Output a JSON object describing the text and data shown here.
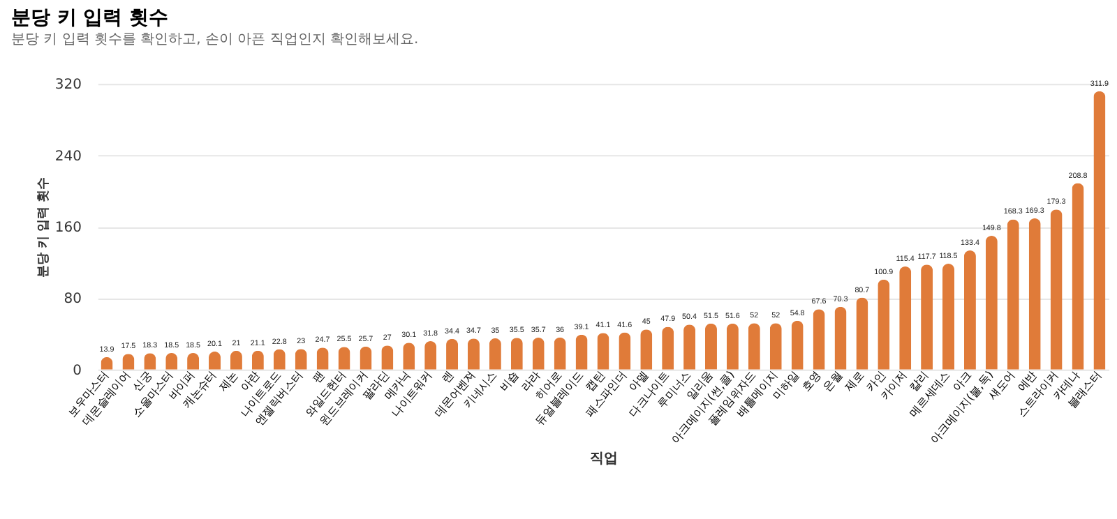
{
  "chart_data": {
    "type": "bar",
    "title": "분당 키 입력 횟수",
    "subtitle": "분당 키 입력 횟수를 확인하고, 손이 아픈 직업인지 확인해보세요.",
    "xlabel": "직업",
    "ylabel": "분당 키 입력 횟수",
    "categories": [
      "보우마스터",
      "데몬슬레이어",
      "신궁",
      "소울마스터",
      "바이퍼",
      "캐논슈터",
      "제논",
      "아란",
      "나이트로드",
      "엔젤릭버스터",
      "팬",
      "와일드헌터",
      "윈드브레이커",
      "팔라딘",
      "메카닉",
      "나이트워커",
      "렌",
      "데몬어벤져",
      "키네시스",
      "비숍",
      "라라",
      "히어로",
      "듀얼블레이드",
      "캡틴",
      "패스파인더",
      "아델",
      "다크나이트",
      "루미너스",
      "일리움",
      "아크메이지(썬,콜)",
      "플레임위자드",
      "배틀메이지",
      "미하일",
      "호영",
      "은월",
      "제로",
      "카인",
      "카이저",
      "칼리",
      "메르세데스",
      "아크",
      "아크메이지(불,독)",
      "섀도어",
      "에반",
      "스트라이커",
      "카데나",
      "블래스터"
    ],
    "values": [
      13.9,
      17.5,
      18.3,
      18.5,
      18.5,
      20.1,
      21,
      21.1,
      22.8,
      23,
      24.7,
      25.5,
      25.7,
      27,
      30.1,
      31.8,
      34.4,
      34.7,
      35,
      35.5,
      35.7,
      36,
      39.1,
      41.1,
      41.6,
      45,
      47.9,
      50.4,
      51.5,
      51.6,
      52,
      52,
      54.8,
      67.6,
      70.3,
      80.7,
      100.9,
      115.4,
      117.7,
      118.5,
      133.4,
      149.8,
      168.3,
      169.3,
      179.3,
      208.8,
      311.9
    ],
    "color": "#e07b39",
    "ylim": [
      0,
      320
    ],
    "yticks": [
      0,
      80,
      160,
      240,
      320
    ],
    "grid": "y",
    "data_labels": true
  }
}
